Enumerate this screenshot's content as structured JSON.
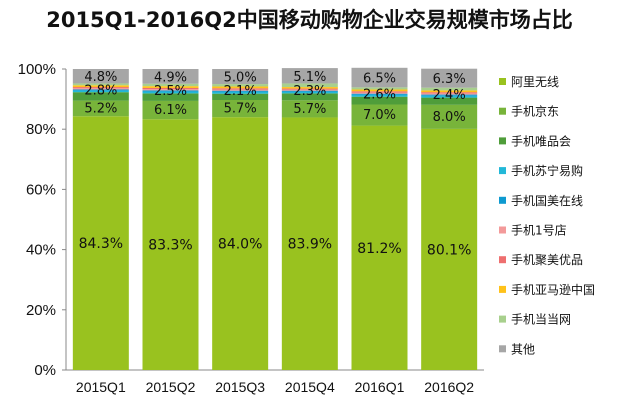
{
  "chart_data": {
    "type": "bar",
    "stacked": true,
    "title": "2015Q1-2016Q2中国移动购物企业交易规模市场占比",
    "categories": [
      "2015Q1",
      "2015Q2",
      "2015Q3",
      "2015Q4",
      "2016Q1",
      "2016Q2"
    ],
    "yticks": [
      "0%",
      "20%",
      "40%",
      "60%",
      "80%",
      "100%"
    ],
    "ylim": [
      0,
      100
    ],
    "legend_position": "right",
    "series": [
      {
        "name": "阿里无线",
        "color": "#99c21f",
        "values": [
          84.3,
          83.3,
          84.0,
          83.9,
          81.2,
          80.1
        ],
        "labels": [
          "84.3%",
          "83.3%",
          "84.0%",
          "83.9%",
          "81.2%",
          "80.1%"
        ]
      },
      {
        "name": "手机京东",
        "color": "#78b43a",
        "values": [
          5.2,
          6.1,
          5.7,
          5.7,
          7.0,
          8.0
        ],
        "labels": [
          "5.2%",
          "6.1%",
          "5.7%",
          "5.7%",
          "7.0%",
          "8.0%"
        ]
      },
      {
        "name": "手机唯品会",
        "color": "#4f9d3a",
        "values": [
          2.8,
          2.5,
          2.1,
          2.3,
          2.6,
          2.4
        ],
        "labels": [
          "2.8%",
          "2.5%",
          "2.1%",
          "2.3%",
          "2.6%",
          "2.4%"
        ]
      },
      {
        "name": "手机苏宁易购",
        "color": "#22b8d8",
        "values": [
          0.5,
          0.6,
          0.6,
          0.5,
          0.6,
          0.6
        ],
        "labels": []
      },
      {
        "name": "手机国美在线",
        "color": "#0e9ad0",
        "values": [
          0.4,
          0.4,
          0.4,
          0.4,
          0.4,
          0.4
        ],
        "labels": []
      },
      {
        "name": "手机1号店",
        "color": "#f39a9a",
        "values": [
          0.4,
          0.4,
          0.4,
          0.4,
          0.4,
          0.4
        ],
        "labels": []
      },
      {
        "name": "手机聚美优品",
        "color": "#ee6f6f",
        "values": [
          0.4,
          0.4,
          0.4,
          0.3,
          0.4,
          0.4
        ],
        "labels": []
      },
      {
        "name": "手机亚马逊中国",
        "color": "#ffc21a",
        "values": [
          0.6,
          0.6,
          0.6,
          0.5,
          0.6,
          0.6
        ],
        "labels": []
      },
      {
        "name": "手机当当网",
        "color": "#a8d08d",
        "values": [
          0.6,
          0.8,
          0.8,
          1.2,
          0.7,
          0.9
        ],
        "labels": []
      },
      {
        "name": "其他",
        "color": "#a6a6a6",
        "values": [
          4.8,
          4.9,
          5.0,
          5.1,
          6.5,
          6.3
        ],
        "labels": [
          "4.8%",
          "4.9%",
          "5.0%",
          "5.1%",
          "6.5%",
          "6.3%"
        ]
      }
    ]
  }
}
